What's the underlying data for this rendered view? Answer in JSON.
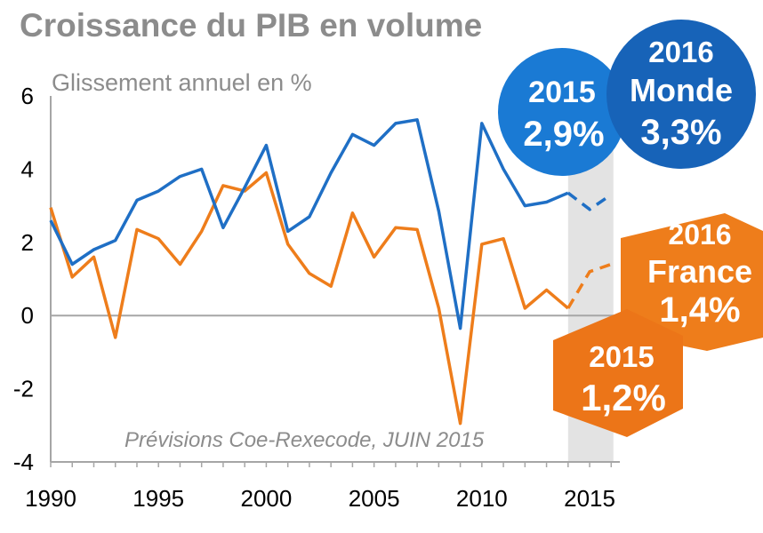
{
  "title": "Croissance du PIB en volume",
  "subtitle": "Glissement annuel en %",
  "source": "Prévisions Coe-Rexecode, JUIN 2015",
  "colors": {
    "monde": "#1f6fc5",
    "france": "#ee7d1b",
    "forecast_band": "#e3e3e3",
    "axis": "#a6a6a6"
  },
  "chart_data": {
    "type": "line",
    "x": [
      1990,
      1991,
      1992,
      1993,
      1994,
      1995,
      1996,
      1997,
      1998,
      1999,
      2000,
      2001,
      2002,
      2003,
      2004,
      2005,
      2006,
      2007,
      2008,
      2009,
      2010,
      2011,
      2012,
      2013,
      2014,
      2015,
      2016
    ],
    "xlim": [
      1990,
      2016.4
    ],
    "ylim": [
      -4,
      6
    ],
    "x_ticks": [
      "1990",
      "1995",
      "2000",
      "2005",
      "2010",
      "2015"
    ],
    "y_ticks": [
      "6",
      "4",
      "2",
      "0",
      "-2",
      "-4"
    ],
    "forecast_band": [
      2014,
      2016.1
    ],
    "forecast_from": 2014,
    "series": [
      {
        "key": "monde",
        "values": [
          2.6,
          1.4,
          1.8,
          2.05,
          3.15,
          3.4,
          3.8,
          4.0,
          2.4,
          3.5,
          4.65,
          2.3,
          2.7,
          3.9,
          4.95,
          4.65,
          5.25,
          5.35,
          2.85,
          -0.35,
          5.25,
          4.0,
          3.0,
          3.1,
          3.35,
          2.9,
          3.3
        ]
      },
      {
        "key": "france",
        "values": [
          2.95,
          1.05,
          1.6,
          -0.6,
          2.35,
          2.1,
          1.4,
          2.3,
          3.55,
          3.4,
          3.9,
          1.95,
          1.15,
          0.8,
          2.8,
          1.6,
          2.4,
          2.35,
          0.2,
          -2.95,
          1.95,
          2.1,
          0.2,
          0.7,
          0.2,
          1.2,
          1.4
        ]
      }
    ]
  },
  "badges": {
    "monde_2015": {
      "line1": "2015",
      "line2": "2,9%"
    },
    "monde_2016": {
      "line1": "2016",
      "line2": "Monde",
      "line3": "3,3%"
    },
    "france_2016": {
      "line1": "2016",
      "line2": "France",
      "line3": "1,4%"
    },
    "france_2015": {
      "line1": "2015",
      "line2": "1,2%"
    }
  }
}
